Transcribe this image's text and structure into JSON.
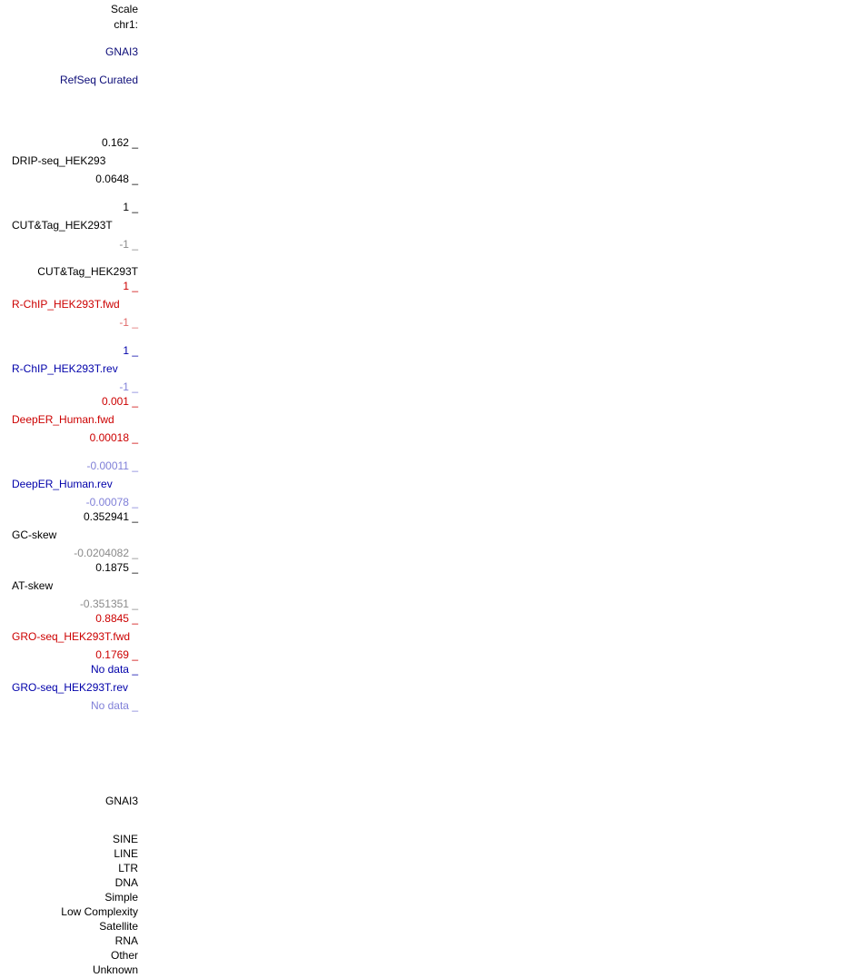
{
  "labels": [
    "Scale",
    "chr1:",
    "GNAI3",
    "RefSeq Curated",
    "0.162 _",
    "DRIP-seq_HEK293",
    "0.0648 _",
    "1 _",
    "CUT&Tag_HEK293T",
    "-1 _",
    "CUT&Tag_HEK293T",
    "1 _",
    "R-ChIP_HEK293T.fwd",
    "-1 _",
    "1 _",
    "R-ChIP_HEK293T.rev",
    "-1 _",
    "0.001 _",
    "DeepER_Human.fwd",
    "0.00018 _",
    "-0.00011 _",
    "DeepER_Human.rev",
    "-0.00078 _",
    "0.352941 _",
    "GC-skew",
    "-0.0204082 _",
    "0.1875 _",
    "AT-skew",
    "-0.351351 _",
    "0.8845 _",
    "GRO-seq_HEK293T.fwd",
    "0.1769 _",
    "No data _",
    "GRO-seq_HEK293T.rev",
    "No data _",
    "GNAI3",
    "SINE",
    "LINE",
    "LTR",
    "DNA",
    "Simple",
    "Low Complexity",
    "Satellite",
    "RNA",
    "Other",
    "Unknown"
  ]
}
